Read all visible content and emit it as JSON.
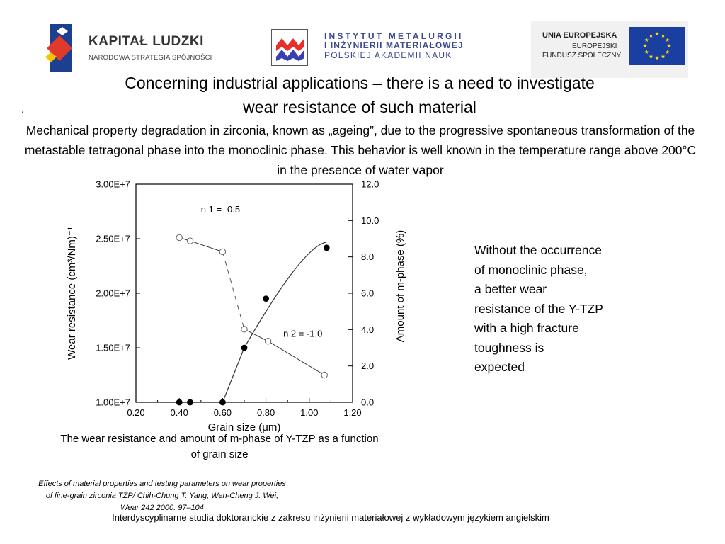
{
  "header": {
    "kapital_ludzki": {
      "name": "KAPITAŁ LUDZKI",
      "subtitle": "NARODOWA STRATEGIA SPÓJNOŚCI"
    },
    "institute": {
      "line1": "INSTYTUT METALURGII",
      "line2": "I INŻYNIERII MATERIAŁOWEJ",
      "line3": "POLSKIEJ AKADEMII NAUK"
    },
    "eu": {
      "line1": "UNIA EUROPEJSKA",
      "line2": "EUROPEJSKI",
      "line3": "FUNDUSZ SPOŁECZNY"
    }
  },
  "slide": {
    "title_line1": "Concerning industrial applications –  there is a need to investigate",
    "title_line2": "wear resistance of such material",
    "bullet": ".",
    "intro": "Mechanical property degradation in zirconia, known as „ageing”, due to the progressive spontaneous transformation of the metastable tetragonal phase into the monoclinic phase. This behavior is well known in the temperature range above 200°C in the presence of water vapor",
    "side_note": [
      "Without the occurrence",
      "of monoclinic phase,",
      "a better wear",
      "resistance of the Y-TZP",
      "with a high fracture",
      "toughness is",
      "expected"
    ],
    "caption": "The wear resistance and amount of m-phase of Y-TZP as a function of grain size",
    "reference": [
      "Effects of material properties and testing parameters on wear properties",
      "of fine-grain zirconia TZP/ Chih-Chung T. Yang, Wen-Cheng J. Wei;",
      "Wear 242 2000. 97–104"
    ],
    "footer": "Interdyscyplinarne studia doktoranckie z zakresu inżynierii materiałowej z wykładowym językiem angielskim"
  },
  "colors": {
    "institute_text": "#3b4a8f",
    "eu_blue": "#1a3fa0",
    "eu_star": "#ffdd00",
    "imim_red": "#e8302a",
    "imim_blue": "#3a3fb0"
  },
  "chart_data": {
    "type": "scatter",
    "xlabel": "Grain size (μm)",
    "ylabel_left": "Wear resistance (cm³/Nm)⁻¹",
    "ylabel_right": "Amount of m-phase (%)",
    "xlim": [
      0.2,
      1.2
    ],
    "ylim_left": [
      10000000,
      30000000
    ],
    "ylim_right": [
      0,
      12
    ],
    "x_ticks": [
      "0.20",
      "0.40",
      "0.60",
      "0.80",
      "1.00",
      "1.20"
    ],
    "y_left_ticks": [
      "1.00E+7",
      "1.50E+7",
      "2.00E+7",
      "2.50E+7",
      "3.00E+7"
    ],
    "y_right_ticks": [
      "0.0",
      "2.0",
      "4.0",
      "6.0",
      "8.0",
      "10.0",
      "12.0"
    ],
    "grid": false,
    "series": [
      {
        "axis": "left",
        "marker": "open-circle",
        "x": [
          0.4,
          0.45,
          0.6,
          0.7,
          0.81,
          1.07
        ],
        "y": [
          25100000,
          24800000,
          23800000,
          16700000,
          15600000,
          12500000
        ]
      },
      {
        "axis": "right",
        "marker": "filled-circle",
        "x": [
          0.4,
          0.45,
          0.6,
          0.7,
          0.8,
          1.08
        ],
        "y": [
          0,
          0,
          0,
          3.0,
          5.7,
          8.5
        ]
      }
    ],
    "annotations": [
      {
        "text": "n 1 = -0.5",
        "at": [
          0.5,
          27400000
        ]
      },
      {
        "text": "n 2 = -1.0",
        "at": [
          0.88,
          16000000
        ]
      }
    ]
  }
}
